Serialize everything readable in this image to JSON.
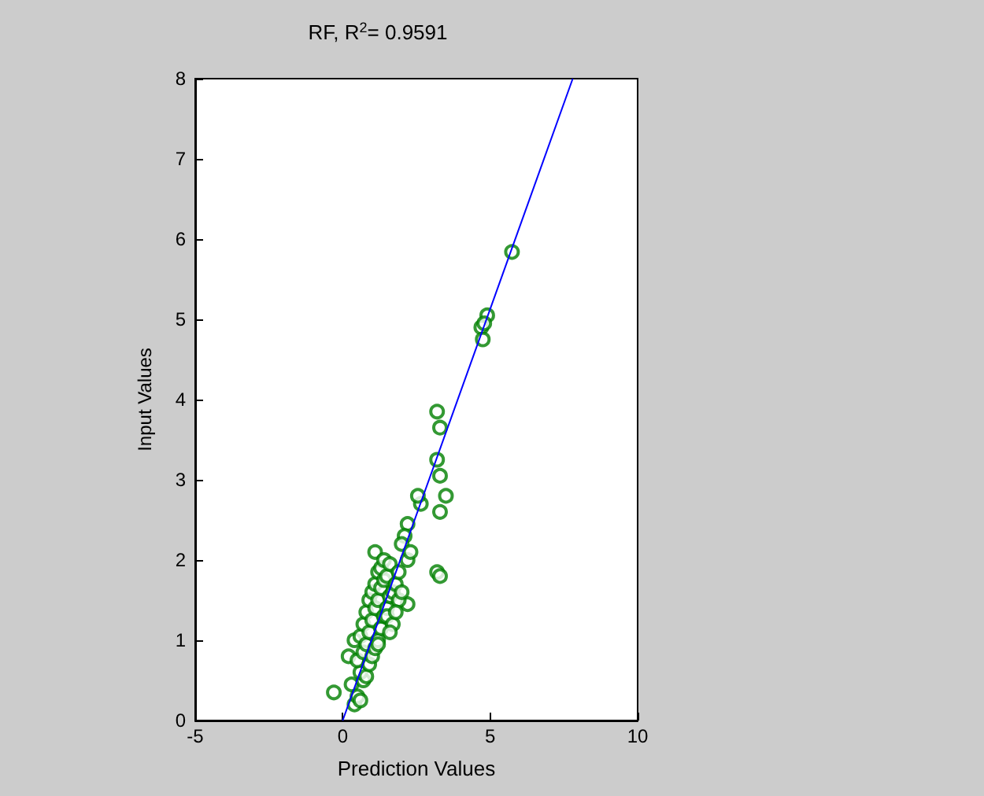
{
  "chart_data": {
    "type": "scatter",
    "title": "RF, R$^{2}$= 0.9591",
    "xlabel": "Prediction Values",
    "ylabel": "Input Values",
    "xlim": [
      -5,
      10
    ],
    "ylim": [
      0,
      8
    ],
    "xticks": [
      -5,
      0,
      5,
      10
    ],
    "yticks": [
      0,
      1,
      2,
      3,
      4,
      5,
      6,
      7,
      8
    ],
    "grid": false,
    "marker": "circle",
    "series": [
      {
        "color": "#008000",
        "x": [
          5.74,
          4.9,
          4.7,
          4.75,
          4.8,
          3.2,
          3.3,
          3.2,
          3.3,
          3.5,
          3.3,
          2.65,
          2.55,
          2.2,
          2.1,
          3.2,
          3.3,
          2.2,
          1.1,
          -0.3,
          0.4,
          0.3,
          0.5,
          0.6,
          0.7,
          0.2,
          0.4,
          0.6,
          0.8,
          0.5,
          0.7,
          0.9,
          0.6,
          0.8,
          1.0,
          0.7,
          0.9,
          1.1,
          0.8,
          1.0,
          1.2,
          0.9,
          1.1,
          1.3,
          1.0,
          1.2,
          1.4,
          1.1,
          1.3,
          1.5,
          1.2,
          1.4,
          1.6,
          1.3,
          1.5,
          1.7,
          1.4,
          1.6,
          1.8,
          1.5,
          1.7,
          1.9,
          1.6,
          1.8,
          2.0,
          2.2,
          2.0,
          1.9,
          2.3,
          1.2
        ],
        "values": [
          5.84,
          5.05,
          4.9,
          4.75,
          4.95,
          3.85,
          3.65,
          3.25,
          3.05,
          2.8,
          2.6,
          2.7,
          2.8,
          2.45,
          2.3,
          1.85,
          1.8,
          1.45,
          2.1,
          0.35,
          0.2,
          0.45,
          0.3,
          0.25,
          0.5,
          0.8,
          1.0,
          0.6,
          0.55,
          0.75,
          0.85,
          0.7,
          1.05,
          0.95,
          0.8,
          1.2,
          1.1,
          0.9,
          1.35,
          1.25,
          1.0,
          1.5,
          1.4,
          1.15,
          1.6,
          1.5,
          1.3,
          1.7,
          1.65,
          1.4,
          1.85,
          1.75,
          1.55,
          1.9,
          1.8,
          1.6,
          2.0,
          1.95,
          1.7,
          1.3,
          1.2,
          1.5,
          1.1,
          1.35,
          1.6,
          2.0,
          2.2,
          1.85,
          2.1,
          0.95
        ]
      },
      {
        "type": "line",
        "color": "#0000ff",
        "marker": "none",
        "x": [
          0,
          7.8
        ],
        "values": [
          0,
          8
        ]
      }
    ]
  }
}
